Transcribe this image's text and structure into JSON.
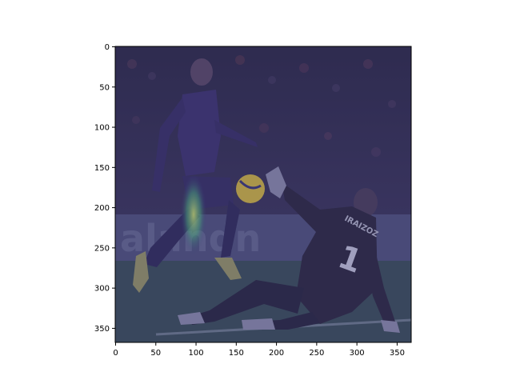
{
  "figure": {
    "x_axis": {
      "range": [
        0,
        367
      ],
      "ticks": [
        0,
        50,
        100,
        150,
        200,
        250,
        300,
        350
      ],
      "tick_labels": [
        "0",
        "50",
        "100",
        "150",
        "200",
        "250",
        "300",
        "350"
      ]
    },
    "y_axis": {
      "range": [
        0,
        367
      ],
      "inverted": true,
      "ticks": [
        0,
        50,
        100,
        150,
        200,
        250,
        300,
        350
      ],
      "tick_labels": [
        "0",
        "50",
        "100",
        "150",
        "200",
        "250",
        "300",
        "350"
      ]
    },
    "image": {
      "description_colors": {
        "overlay": "#3b3f7a",
        "crowd_dark": "#2a2748",
        "banner": "#4f4e78",
        "pitch": "#3a4a52",
        "keeper_kit": "#2a2238",
        "striker_shirt": "#3c2e6a",
        "ball": "#d6b63a",
        "heat": "#c9e06a"
      },
      "jersey_name": "IRAIZOZ",
      "jersey_number": "1",
      "banner_text": "alandn"
    }
  }
}
